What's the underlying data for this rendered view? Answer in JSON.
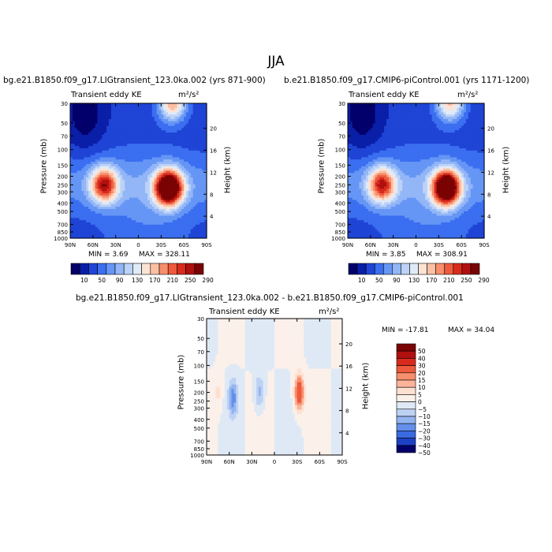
{
  "figure": {
    "title": "JJA"
  },
  "chart_data": [
    {
      "type": "heatmap",
      "title": "bg.e21.B1850.f09_g17.LIGtransient_123.0ka.002 (yrs 871-900)",
      "subtitle_left": "Transient eddy KE",
      "units": "m²/s²",
      "ylabel": "Pressure (mb)",
      "ylabel_right": "Height (km)",
      "x_ticks": [
        "90N",
        "60N",
        "30N",
        "0",
        "30S",
        "60S",
        "90S"
      ],
      "y_ticks": [
        30,
        50,
        70,
        100,
        150,
        200,
        250,
        300,
        400,
        500,
        700,
        850,
        1000
      ],
      "y2_ticks": [
        20,
        16,
        12,
        8,
        4
      ],
      "min": "3.69",
      "max": "328.11",
      "colorbar": [
        10,
        50,
        90,
        130,
        170,
        210,
        250,
        290
      ],
      "features": [
        {
          "lat": -40,
          "p": 270,
          "value": 310
        },
        {
          "lat": 45,
          "p": 250,
          "value": 190
        },
        {
          "lat": -45,
          "p": 30,
          "value": 150
        }
      ]
    },
    {
      "type": "heatmap",
      "title": "b.e21.B1850.f09_g17.CMIP6-piControl.001 (yrs 1171-1200)",
      "subtitle_left": "Transient eddy KE",
      "units": "m²/s²",
      "ylabel": "Pressure (mb)",
      "ylabel_right": "Height (km)",
      "x_ticks": [
        "90N",
        "60N",
        "30N",
        "0",
        "30S",
        "60S",
        "90S"
      ],
      "y_ticks": [
        30,
        50,
        70,
        100,
        150,
        200,
        250,
        300,
        400,
        500,
        700,
        850,
        1000
      ],
      "y2_ticks": [
        20,
        16,
        12,
        8,
        4
      ],
      "min": "3.85",
      "max": "308.91",
      "colorbar": [
        10,
        50,
        90,
        130,
        170,
        210,
        250,
        290
      ],
      "features": [
        {
          "lat": -40,
          "p": 270,
          "value": 300
        },
        {
          "lat": 45,
          "p": 250,
          "value": 180
        },
        {
          "lat": -45,
          "p": 30,
          "value": 140
        }
      ]
    },
    {
      "type": "heatmap",
      "title": "bg.e21.B1850.f09_g17.LIGtransient_123.0ka.002 - b.e21.B1850.f09_g17.CMIP6-piControl.001",
      "subtitle_left": "Transient eddy KE",
      "units": "m²/s²",
      "ylabel": "Pressure (mb)",
      "ylabel_right": "Height (km)",
      "x_ticks": [
        "90N",
        "60N",
        "30N",
        "0",
        "30S",
        "60S",
        "90S"
      ],
      "y_ticks": [
        30,
        50,
        70,
        100,
        150,
        200,
        250,
        300,
        400,
        500,
        700,
        850,
        1000
      ],
      "y2_ticks": [
        20,
        16,
        12,
        8,
        4
      ],
      "min": "-17.81",
      "max": "34.04",
      "colorbar": [
        50,
        40,
        30,
        20,
        15,
        10,
        5,
        0,
        -5,
        -10,
        -15,
        -20,
        -30,
        -40,
        -50
      ],
      "features": [
        {
          "lat": -33,
          "p": 200,
          "value": 30
        },
        {
          "lat": 55,
          "p": 230,
          "value": -18
        },
        {
          "lat": 20,
          "p": 200,
          "value": -12
        },
        {
          "lat": 75,
          "p": 200,
          "value": 6
        }
      ]
    }
  ],
  "colors": {
    "seq": [
      "#03006b",
      "#0a1fa8",
      "#1f44d6",
      "#3b6ef0",
      "#6696f5",
      "#93b6f7",
      "#bcd2f7",
      "#e0ebf8",
      "#fde3d4",
      "#fbbfa3",
      "#f78e6c",
      "#ee5a3d",
      "#d82b1c",
      "#b01010",
      "#7a0303"
    ],
    "div": [
      "#7a0303",
      "#b01010",
      "#d82b1c",
      "#ee5a3d",
      "#f78e6c",
      "#fbb39a",
      "#fde0cf",
      "#fbf0ea",
      "#dfe9f6",
      "#bdd2f3",
      "#93b4f0",
      "#6590ea",
      "#3b6ae0",
      "#1d41c4",
      "#03006b"
    ]
  }
}
